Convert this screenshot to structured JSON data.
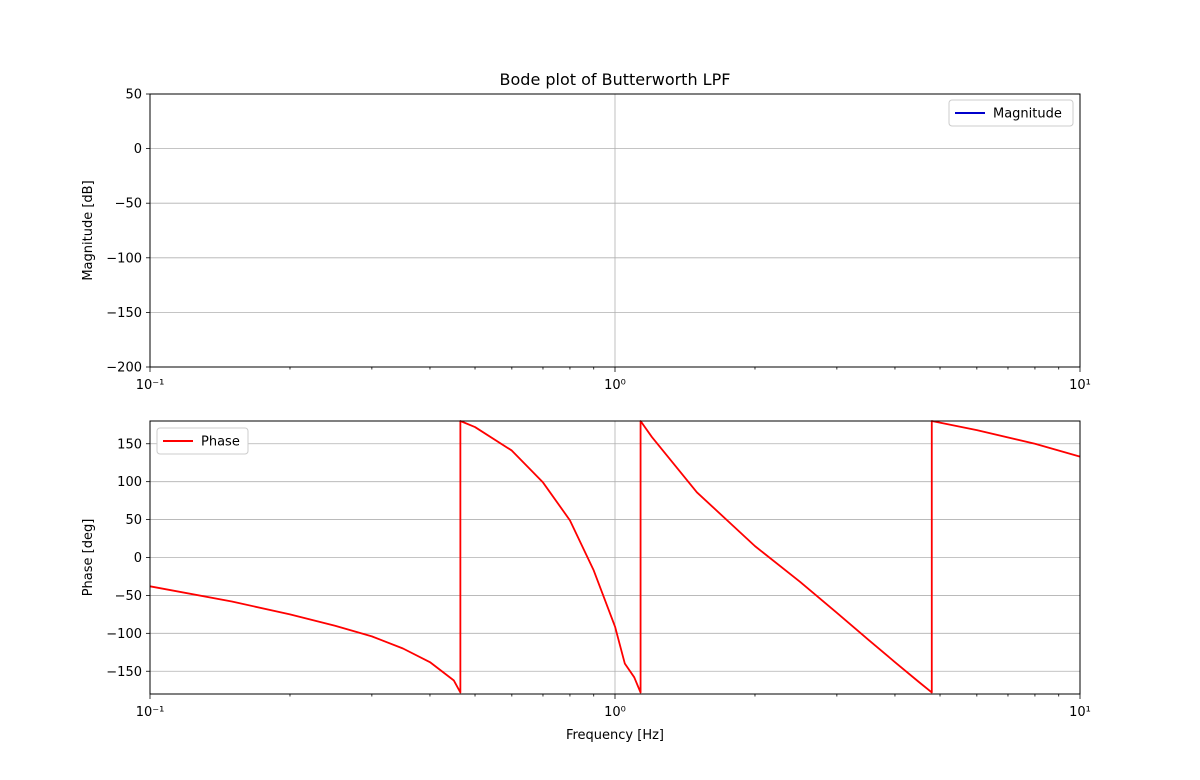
{
  "chart_data": [
    {
      "type": "line",
      "title": "Bode plot of Butterworth LPF",
      "xlabel": "",
      "ylabel": "Magnitude  [dB]",
      "xscale": "log",
      "xlim": [
        0.1,
        10
      ],
      "ylim": [
        -200,
        50
      ],
      "x_major_ticks": [
        0.1,
        1,
        10
      ],
      "x_major_tick_labels": [
        "10⁻¹",
        "10⁰",
        "10¹"
      ],
      "y_ticks": [
        50,
        0,
        -50,
        -100,
        -150,
        -200
      ],
      "y_tick_labels": [
        "50",
        "0",
        "−50",
        "−100",
        "−150",
        "−200"
      ],
      "grid": true,
      "legend_placement": "top-right",
      "series": [
        {
          "name": "Magnitude",
          "color": "#0000cc",
          "x": [],
          "y": []
        }
      ]
    },
    {
      "type": "line",
      "title": "",
      "xlabel": "Frequency  [Hz]",
      "ylabel": "Phase  [deg]",
      "xscale": "log",
      "xlim": [
        0.1,
        10
      ],
      "ylim": [
        -180,
        180
      ],
      "x_major_ticks": [
        0.1,
        1,
        10
      ],
      "x_major_tick_labels": [
        "10⁻¹",
        "10⁰",
        "10¹"
      ],
      "y_ticks": [
        150,
        100,
        50,
        0,
        -50,
        -100,
        -150
      ],
      "y_tick_labels": [
        "150",
        "100",
        "50",
        "0",
        "−50",
        "−100",
        "−150"
      ],
      "grid": true,
      "legend_placement": "top-left",
      "series": [
        {
          "name": "Phase",
          "color": "#ff0000",
          "x": [
            0.1,
            0.15,
            0.2,
            0.25,
            0.3,
            0.35,
            0.4,
            0.45,
            0.465,
            0.465,
            0.5,
            0.6,
            0.7,
            0.8,
            0.9,
            1.0,
            1.05,
            1.1,
            1.135,
            1.135,
            1.2,
            1.5,
            2.0,
            2.5,
            3.0,
            3.5,
            4.0,
            4.5,
            4.8,
            4.8,
            6.0,
            8.0,
            10.0
          ],
          "y": [
            -38,
            -58,
            -75,
            -90,
            -104,
            -120,
            -138,
            -162,
            -178,
            180,
            172,
            141,
            99,
            49,
            -17,
            -91,
            -140,
            -158,
            -178,
            180,
            159,
            86,
            15,
            -32,
            -73,
            -108,
            -138,
            -164,
            -178,
            180,
            168,
            150,
            133
          ]
        }
      ]
    }
  ]
}
